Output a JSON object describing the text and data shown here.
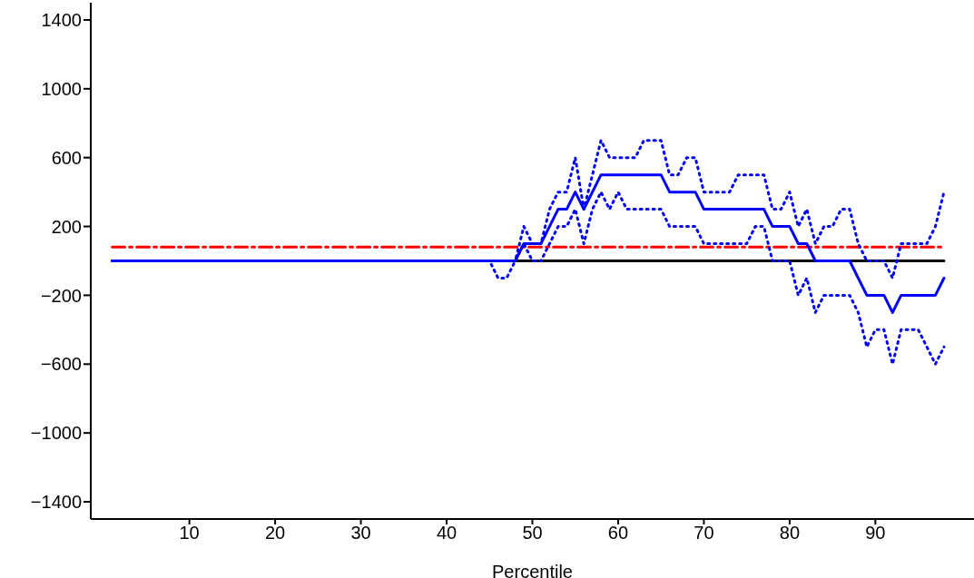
{
  "chart_data": {
    "type": "line",
    "xlabel": "Percentile",
    "x": [
      1,
      2,
      3,
      4,
      5,
      6,
      7,
      8,
      9,
      10,
      11,
      12,
      13,
      14,
      15,
      16,
      17,
      18,
      19,
      20,
      21,
      22,
      23,
      24,
      25,
      26,
      27,
      28,
      29,
      30,
      31,
      32,
      33,
      34,
      35,
      36,
      37,
      38,
      39,
      40,
      41,
      42,
      43,
      44,
      45,
      46,
      47,
      48,
      49,
      50,
      51,
      52,
      53,
      54,
      55,
      56,
      57,
      58,
      59,
      60,
      61,
      62,
      63,
      64,
      65,
      66,
      67,
      68,
      69,
      70,
      71,
      72,
      73,
      74,
      75,
      76,
      77,
      78,
      79,
      80,
      81,
      82,
      83,
      84,
      85,
      86,
      87,
      88,
      89,
      90,
      91,
      92,
      93,
      94,
      95,
      96,
      97,
      98
    ],
    "series": [
      {
        "color": "#000000",
        "line_style": "solid",
        "values": [
          null,
          null,
          null,
          null,
          null,
          null,
          null,
          null,
          null,
          null,
          null,
          null,
          null,
          null,
          null,
          null,
          null,
          null,
          null,
          null,
          null,
          null,
          null,
          null,
          null,
          null,
          null,
          null,
          null,
          null,
          null,
          null,
          null,
          null,
          null,
          null,
          null,
          null,
          null,
          null,
          null,
          null,
          null,
          null,
          null,
          null,
          null,
          0,
          0,
          0,
          0,
          0,
          0,
          0,
          0,
          0,
          0,
          0,
          0,
          0,
          0,
          0,
          0,
          0,
          0,
          0,
          0,
          0,
          0,
          0,
          0,
          0,
          0,
          0,
          0,
          0,
          0,
          0,
          0,
          0,
          0,
          0,
          0,
          null,
          null,
          null,
          0,
          0,
          0,
          0,
          0,
          0,
          0,
          0,
          0,
          0,
          0,
          0
        ]
      },
      {
        "color": "#ff0000",
        "line_style": "dashed",
        "values": [
          80,
          80,
          80,
          80,
          80,
          80,
          80,
          80,
          80,
          80,
          80,
          80,
          80,
          80,
          80,
          80,
          80,
          80,
          80,
          80,
          80,
          80,
          80,
          80,
          80,
          80,
          80,
          80,
          80,
          80,
          80,
          80,
          80,
          80,
          80,
          80,
          80,
          80,
          80,
          80,
          80,
          80,
          80,
          80,
          80,
          80,
          80,
          80,
          80,
          80,
          80,
          80,
          80,
          80,
          80,
          80,
          80,
          80,
          80,
          80,
          80,
          80,
          80,
          80,
          80,
          80,
          80,
          80,
          80,
          80,
          80,
          80,
          80,
          80,
          80,
          80,
          80,
          80,
          80,
          80,
          80,
          80,
          80,
          80,
          80,
          80,
          80,
          80,
          80,
          80,
          80,
          80,
          80,
          80,
          80,
          80,
          80,
          80
        ]
      },
      {
        "color": "#0000ff",
        "line_style": "dotted",
        "values": [
          0,
          0,
          0,
          0,
          0,
          0,
          0,
          0,
          0,
          0,
          0,
          0,
          0,
          0,
          0,
          0,
          0,
          0,
          0,
          0,
          0,
          0,
          0,
          0,
          0,
          0,
          0,
          0,
          0,
          0,
          0,
          0,
          0,
          0,
          0,
          0,
          0,
          0,
          0,
          0,
          0,
          0,
          0,
          0,
          0,
          0,
          0,
          0,
          200,
          100,
          100,
          300,
          400,
          400,
          600,
          300,
          500,
          700,
          600,
          600,
          600,
          600,
          700,
          700,
          700,
          500,
          500,
          600,
          600,
          400,
          400,
          400,
          400,
          500,
          500,
          500,
          500,
          300,
          300,
          400,
          200,
          300,
          100,
          200,
          200,
          300,
          300,
          100,
          0,
          0,
          0,
          -100,
          100,
          100,
          100,
          100,
          200,
          400
        ]
      },
      {
        "color": "#0000ff",
        "line_style": "dotted",
        "values": [
          0,
          0,
          0,
          0,
          0,
          0,
          0,
          0,
          0,
          0,
          0,
          0,
          0,
          0,
          0,
          0,
          0,
          0,
          0,
          0,
          0,
          0,
          0,
          0,
          0,
          0,
          0,
          0,
          0,
          0,
          0,
          0,
          0,
          0,
          0,
          0,
          0,
          0,
          0,
          0,
          0,
          0,
          0,
          0,
          0,
          -100,
          -100,
          0,
          100,
          0,
          0,
          100,
          200,
          200,
          300,
          100,
          300,
          400,
          300,
          400,
          300,
          300,
          300,
          300,
          300,
          200,
          200,
          200,
          200,
          100,
          100,
          100,
          100,
          100,
          100,
          200,
          200,
          0,
          0,
          0,
          -200,
          -100,
          -300,
          -200,
          -200,
          -200,
          -200,
          -300,
          -500,
          -400,
          -400,
          -600,
          -400,
          -400,
          -400,
          -500,
          -600,
          -500
        ]
      },
      {
        "color": "#0000ff",
        "line_style": "solid",
        "values": [
          0,
          0,
          0,
          0,
          0,
          0,
          0,
          0,
          0,
          0,
          0,
          0,
          0,
          0,
          0,
          0,
          0,
          0,
          0,
          0,
          0,
          0,
          0,
          0,
          0,
          0,
          0,
          0,
          0,
          0,
          0,
          0,
          0,
          0,
          0,
          0,
          0,
          0,
          0,
          0,
          0,
          0,
          0,
          0,
          0,
          0,
          0,
          0,
          100,
          100,
          100,
          200,
          300,
          300,
          400,
          300,
          400,
          500,
          500,
          500,
          500,
          500,
          500,
          500,
          500,
          400,
          400,
          400,
          400,
          300,
          300,
          300,
          300,
          300,
          300,
          300,
          300,
          200,
          200,
          200,
          100,
          100,
          0,
          0,
          0,
          0,
          0,
          -100,
          -200,
          -200,
          -200,
          -300,
          -200,
          -200,
          -200,
          -200,
          -200,
          -100
        ]
      }
    ],
    "xlim": [
      -1.5,
      101.5
    ],
    "xticks": [
      10,
      20,
      30,
      40,
      50,
      60,
      70,
      80,
      90
    ],
    "ylim": [
      -1500,
      1500
    ],
    "yticks": [
      {
        "value": -1400,
        "label": "−1400"
      },
      {
        "value": -1000,
        "label": "−1000"
      },
      {
        "value": -600,
        "label": "−600"
      },
      {
        "value": -200,
        "label": "−200"
      },
      200,
      600,
      1000,
      1400
    ],
    "grid": false,
    "legend": false,
    "marker": "none"
  }
}
